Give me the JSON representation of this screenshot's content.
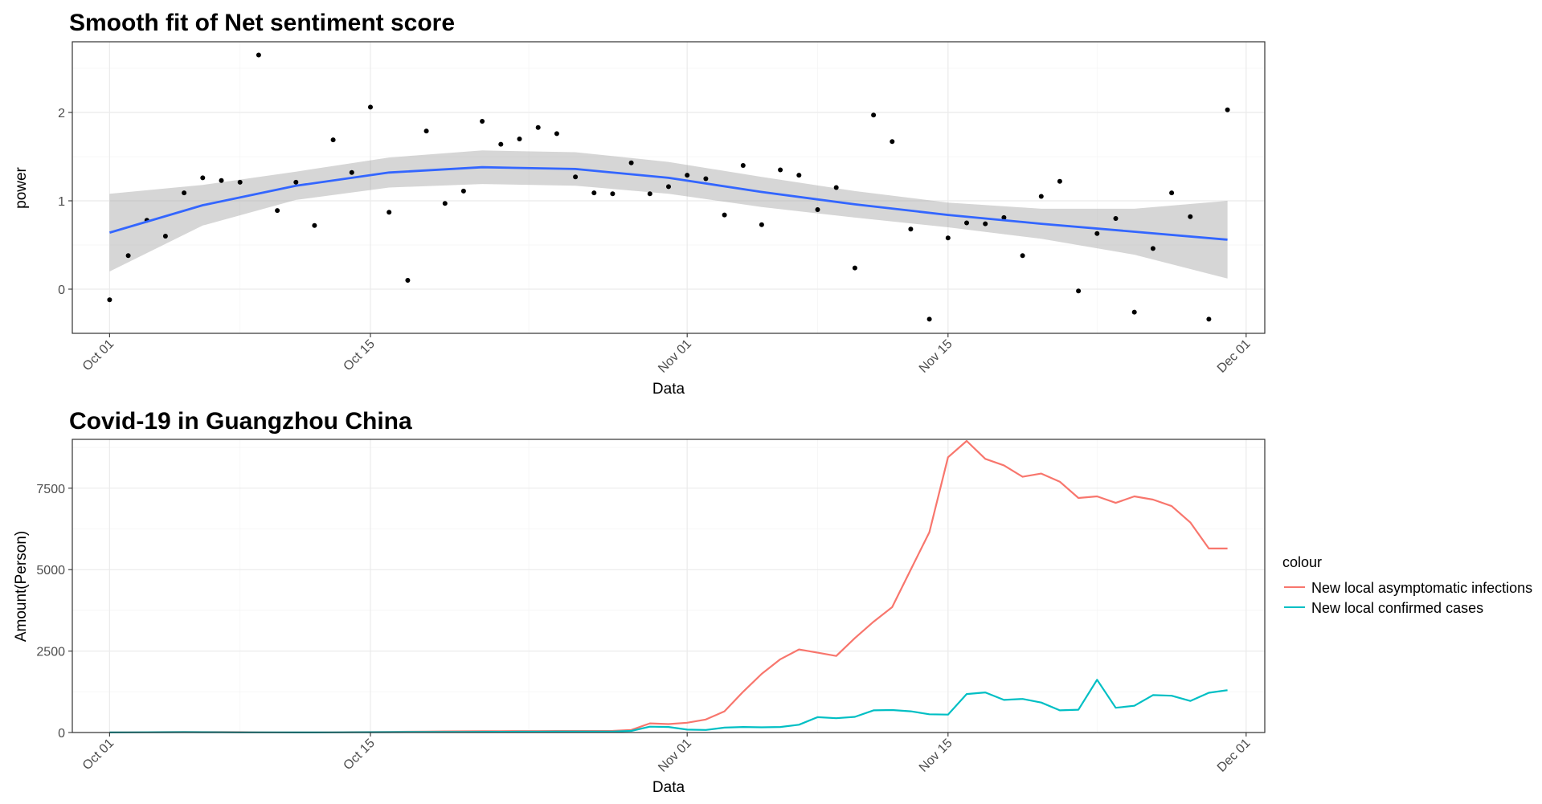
{
  "chart_data": [
    {
      "type": "scatter",
      "title": "Smooth fit of Net sentiment score",
      "xlabel": "Data",
      "ylabel": "power",
      "x_ticks": [
        "Oct 01",
        "Oct 15",
        "Nov 01",
        "Nov 15",
        "Dec 01"
      ],
      "y_ticks": [
        "0",
        "1",
        "2"
      ],
      "xlim": [
        "2022-09-29",
        "2022-12-02"
      ],
      "ylim": [
        -0.5,
        2.8
      ],
      "grid": true,
      "point_color": "#000000",
      "smooth_color": "#3366ff",
      "ribbon_color": "#999999",
      "points": [
        {
          "x": "2022-10-01",
          "y": -0.12
        },
        {
          "x": "2022-10-02",
          "y": 0.38
        },
        {
          "x": "2022-10-03",
          "y": 0.78
        },
        {
          "x": "2022-10-04",
          "y": 0.6
        },
        {
          "x": "2022-10-05",
          "y": 1.09
        },
        {
          "x": "2022-10-06",
          "y": 1.26
        },
        {
          "x": "2022-10-07",
          "y": 1.23
        },
        {
          "x": "2022-10-08",
          "y": 1.21
        },
        {
          "x": "2022-10-09",
          "y": 2.65
        },
        {
          "x": "2022-10-10",
          "y": 0.89
        },
        {
          "x": "2022-10-11",
          "y": 1.21
        },
        {
          "x": "2022-10-12",
          "y": 0.72
        },
        {
          "x": "2022-10-13",
          "y": 1.69
        },
        {
          "x": "2022-10-14",
          "y": 1.32
        },
        {
          "x": "2022-10-15",
          "y": 2.06
        },
        {
          "x": "2022-10-16",
          "y": 0.87
        },
        {
          "x": "2022-10-17",
          "y": 0.1
        },
        {
          "x": "2022-10-18",
          "y": 1.79
        },
        {
          "x": "2022-10-19",
          "y": 0.97
        },
        {
          "x": "2022-10-20",
          "y": 1.11
        },
        {
          "x": "2022-10-21",
          "y": 1.9
        },
        {
          "x": "2022-10-22",
          "y": 1.64
        },
        {
          "x": "2022-10-23",
          "y": 1.7
        },
        {
          "x": "2022-10-24",
          "y": 1.83
        },
        {
          "x": "2022-10-25",
          "y": 1.76
        },
        {
          "x": "2022-10-26",
          "y": 1.27
        },
        {
          "x": "2022-10-27",
          "y": 1.09
        },
        {
          "x": "2022-10-28",
          "y": 1.08
        },
        {
          "x": "2022-10-29",
          "y": 1.43
        },
        {
          "x": "2022-10-30",
          "y": 1.08
        },
        {
          "x": "2022-10-31",
          "y": 1.16
        },
        {
          "x": "2022-11-01",
          "y": 1.29
        },
        {
          "x": "2022-11-02",
          "y": 1.25
        },
        {
          "x": "2022-11-03",
          "y": 0.84
        },
        {
          "x": "2022-11-04",
          "y": 1.4
        },
        {
          "x": "2022-11-05",
          "y": 0.73
        },
        {
          "x": "2022-11-06",
          "y": 1.35
        },
        {
          "x": "2022-11-07",
          "y": 1.29
        },
        {
          "x": "2022-11-08",
          "y": 0.9
        },
        {
          "x": "2022-11-09",
          "y": 1.15
        },
        {
          "x": "2022-11-10",
          "y": 0.24
        },
        {
          "x": "2022-11-11",
          "y": 1.97
        },
        {
          "x": "2022-11-12",
          "y": 1.67
        },
        {
          "x": "2022-11-13",
          "y": 0.68
        },
        {
          "x": "2022-11-14",
          "y": -0.34
        },
        {
          "x": "2022-11-15",
          "y": 0.58
        },
        {
          "x": "2022-11-16",
          "y": 0.75
        },
        {
          "x": "2022-11-17",
          "y": 0.74
        },
        {
          "x": "2022-11-18",
          "y": 0.81
        },
        {
          "x": "2022-11-19",
          "y": 0.38
        },
        {
          "x": "2022-11-20",
          "y": 1.05
        },
        {
          "x": "2022-11-21",
          "y": 1.22
        },
        {
          "x": "2022-11-22",
          "y": -0.02
        },
        {
          "x": "2022-11-23",
          "y": 0.63
        },
        {
          "x": "2022-11-24",
          "y": 0.8
        },
        {
          "x": "2022-11-25",
          "y": -0.26
        },
        {
          "x": "2022-11-26",
          "y": 0.46
        },
        {
          "x": "2022-11-27",
          "y": 1.09
        },
        {
          "x": "2022-11-28",
          "y": 0.82
        },
        {
          "x": "2022-11-29",
          "y": -0.34
        },
        {
          "x": "2022-11-30",
          "y": 2.03
        }
      ],
      "smooth": {
        "x": [
          "2022-10-01",
          "2022-10-06",
          "2022-10-11",
          "2022-10-16",
          "2022-10-21",
          "2022-10-26",
          "2022-10-31",
          "2022-11-05",
          "2022-11-10",
          "2022-11-15",
          "2022-11-20",
          "2022-11-25",
          "2022-11-30"
        ],
        "y": [
          0.64,
          0.95,
          1.17,
          1.32,
          1.38,
          1.36,
          1.26,
          1.1,
          0.96,
          0.84,
          0.74,
          0.65,
          0.56
        ],
        "ymin": [
          0.2,
          0.72,
          1.01,
          1.15,
          1.19,
          1.17,
          1.08,
          0.93,
          0.81,
          0.7,
          0.57,
          0.39,
          0.12
        ],
        "ymax": [
          1.08,
          1.18,
          1.33,
          1.49,
          1.57,
          1.55,
          1.44,
          1.27,
          1.11,
          0.98,
          0.91,
          0.91,
          1.0
        ]
      }
    },
    {
      "type": "line",
      "title": "Covid-19 in Guangzhou China",
      "xlabel": "Data",
      "ylabel": "Amount(Person)",
      "x_ticks": [
        "Oct 01",
        "Oct 15",
        "Nov 01",
        "Nov 15",
        "Dec 01"
      ],
      "y_ticks": [
        "0",
        "2500",
        "5000",
        "7500"
      ],
      "xlim": [
        "2022-09-29",
        "2022-12-02"
      ],
      "ylim": [
        0,
        9000
      ],
      "grid": true,
      "legend": {
        "title": "colour",
        "position": "right"
      },
      "x": [
        "2022-10-01",
        "2022-10-02",
        "2022-10-03",
        "2022-10-04",
        "2022-10-05",
        "2022-10-06",
        "2022-10-07",
        "2022-10-08",
        "2022-10-09",
        "2022-10-10",
        "2022-10-11",
        "2022-10-12",
        "2022-10-13",
        "2022-10-14",
        "2022-10-15",
        "2022-10-16",
        "2022-10-17",
        "2022-10-18",
        "2022-10-19",
        "2022-10-20",
        "2022-10-21",
        "2022-10-22",
        "2022-10-23",
        "2022-10-24",
        "2022-10-25",
        "2022-10-26",
        "2022-10-27",
        "2022-10-28",
        "2022-10-29",
        "2022-10-30",
        "2022-10-31",
        "2022-11-01",
        "2022-11-02",
        "2022-11-03",
        "2022-11-04",
        "2022-11-05",
        "2022-11-06",
        "2022-11-07",
        "2022-11-08",
        "2022-11-09",
        "2022-11-10",
        "2022-11-11",
        "2022-11-12",
        "2022-11-13",
        "2022-11-14",
        "2022-11-15",
        "2022-11-16",
        "2022-11-17",
        "2022-11-18",
        "2022-11-19",
        "2022-11-20",
        "2022-11-21",
        "2022-11-22",
        "2022-11-23",
        "2022-11-24",
        "2022-11-25",
        "2022-11-26",
        "2022-11-27",
        "2022-11-28",
        "2022-11-29",
        "2022-11-30"
      ],
      "series": [
        {
          "name": "New local asymptomatic infections",
          "color": "#f8766d",
          "values": [
            5,
            8,
            10,
            15,
            20,
            18,
            15,
            12,
            8,
            6,
            5,
            4,
            8,
            12,
            18,
            20,
            25,
            30,
            35,
            38,
            40,
            42,
            44,
            45,
            46,
            47,
            48,
            50,
            80,
            280,
            260,
            300,
            400,
            650,
            1250,
            1800,
            2250,
            2550,
            2450,
            2350,
            2900,
            3400,
            3850,
            5000,
            6150,
            8450,
            8950,
            8400,
            8200,
            7850,
            7950,
            7700,
            7200,
            7250,
            7050,
            7250,
            7150,
            6950,
            6450,
            5650,
            5650
          ],
          "values_note": ""
        },
        {
          "name": "New local confirmed cases",
          "color": "#00bfc4",
          "values": [
            3,
            5,
            8,
            10,
            12,
            10,
            8,
            6,
            5,
            4,
            3,
            3,
            5,
            8,
            10,
            12,
            14,
            15,
            16,
            18,
            20,
            22,
            24,
            25,
            26,
            27,
            28,
            30,
            50,
            180,
            170,
            90,
            80,
            150,
            170,
            160,
            170,
            240,
            470,
            440,
            480,
            680,
            690,
            650,
            560,
            550,
            1180,
            1230,
            1000,
            1030,
            920,
            680,
            700,
            1620,
            760,
            820,
            1150,
            1130,
            970,
            1220,
            1300
          ],
          "values_note": ""
        }
      ]
    }
  ]
}
